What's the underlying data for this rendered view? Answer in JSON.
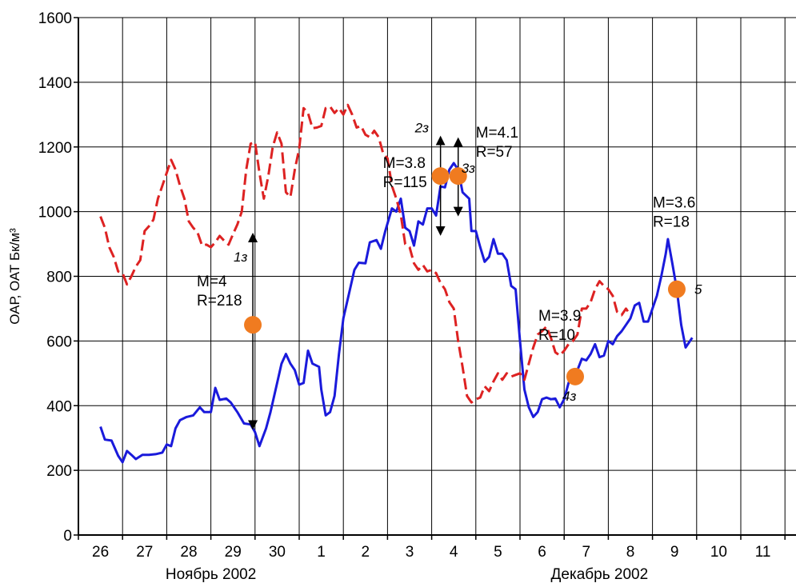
{
  "chart_data": {
    "type": "line",
    "ylabel": "ОАР, ОАТ Бк/м³",
    "ylim": [
      0,
      1600
    ],
    "yticks": [
      "0",
      "200",
      "400",
      "600",
      "800",
      "1000",
      "1200",
      "1400",
      "1600"
    ],
    "xlim": [
      0,
      16
    ],
    "x_ticks": [
      "26",
      "27",
      "28",
      "29",
      "30",
      "1",
      "2",
      "3",
      "4",
      "5",
      "6",
      "7",
      "8",
      "9",
      "10",
      "11"
    ],
    "x_month_labels": [
      "Ноябрь 2002",
      "Декабрь 2002"
    ],
    "grid": true,
    "series": [
      {
        "color": "#1a1adb",
        "style": "solid",
        "points": [
          [
            0.5,
            335
          ],
          [
            0.6,
            295
          ],
          [
            0.75,
            292
          ],
          [
            0.9,
            245
          ],
          [
            1.0,
            225
          ],
          [
            1.1,
            260
          ],
          [
            1.2,
            248
          ],
          [
            1.3,
            235
          ],
          [
            1.45,
            248
          ],
          [
            1.6,
            248
          ],
          [
            1.75,
            250
          ],
          [
            1.9,
            255
          ],
          [
            2.0,
            280
          ],
          [
            2.1,
            275
          ],
          [
            2.2,
            330
          ],
          [
            2.3,
            355
          ],
          [
            2.45,
            365
          ],
          [
            2.6,
            370
          ],
          [
            2.75,
            395
          ],
          [
            2.85,
            380
          ],
          [
            3.0,
            380
          ],
          [
            3.1,
            455
          ],
          [
            3.2,
            418
          ],
          [
            3.35,
            422
          ],
          [
            3.45,
            410
          ],
          [
            3.6,
            380
          ],
          [
            3.75,
            345
          ],
          [
            3.9,
            342
          ],
          [
            4.0,
            318
          ],
          [
            4.1,
            275
          ],
          [
            4.25,
            330
          ],
          [
            4.35,
            380
          ],
          [
            4.5,
            470
          ],
          [
            4.6,
            530
          ],
          [
            4.7,
            560
          ],
          [
            4.8,
            530
          ],
          [
            4.9,
            510
          ],
          [
            5.0,
            465
          ],
          [
            5.1,
            470
          ],
          [
            5.2,
            570
          ],
          [
            5.3,
            530
          ],
          [
            5.45,
            520
          ],
          [
            5.5,
            450
          ],
          [
            5.6,
            370
          ],
          [
            5.7,
            380
          ],
          [
            5.8,
            430
          ],
          [
            5.9,
            560
          ],
          [
            6.0,
            670
          ],
          [
            6.15,
            760
          ],
          [
            6.25,
            820
          ],
          [
            6.35,
            842
          ],
          [
            6.5,
            840
          ],
          [
            6.6,
            905
          ],
          [
            6.75,
            912
          ],
          [
            6.85,
            885
          ],
          [
            6.95,
            940
          ],
          [
            7.1,
            1010
          ],
          [
            7.2,
            1000
          ],
          [
            7.3,
            1040
          ],
          [
            7.4,
            950
          ],
          [
            7.5,
            940
          ],
          [
            7.6,
            895
          ],
          [
            7.7,
            970
          ],
          [
            7.8,
            960
          ],
          [
            7.9,
            1010
          ],
          [
            8.0,
            1010
          ],
          [
            8.1,
            988
          ],
          [
            8.2,
            1078
          ],
          [
            8.3,
            1075
          ],
          [
            8.4,
            1130
          ],
          [
            8.5,
            1150
          ],
          [
            8.6,
            1130
          ],
          [
            8.7,
            1060
          ],
          [
            8.85,
            1040
          ],
          [
            8.9,
            940
          ],
          [
            9.0,
            940
          ],
          [
            9.1,
            890
          ],
          [
            9.2,
            845
          ],
          [
            9.3,
            860
          ],
          [
            9.4,
            915
          ],
          [
            9.5,
            870
          ],
          [
            9.6,
            870
          ],
          [
            9.7,
            850
          ],
          [
            9.8,
            770
          ],
          [
            9.9,
            760
          ],
          [
            10.0,
            600
          ],
          [
            10.1,
            450
          ],
          [
            10.2,
            395
          ],
          [
            10.3,
            365
          ],
          [
            10.4,
            380
          ],
          [
            10.5,
            420
          ],
          [
            10.6,
            425
          ],
          [
            10.7,
            420
          ],
          [
            10.8,
            422
          ],
          [
            10.9,
            395
          ],
          [
            11.0,
            420
          ],
          [
            11.1,
            470
          ],
          [
            11.2,
            500
          ],
          [
            11.3,
            510
          ],
          [
            11.4,
            545
          ],
          [
            11.5,
            540
          ],
          [
            11.6,
            560
          ],
          [
            11.7,
            590
          ],
          [
            11.8,
            550
          ],
          [
            11.9,
            555
          ],
          [
            12.0,
            600
          ],
          [
            12.1,
            590
          ],
          [
            12.2,
            615
          ],
          [
            12.3,
            630
          ],
          [
            12.4,
            650
          ],
          [
            12.5,
            670
          ],
          [
            12.6,
            710
          ],
          [
            12.7,
            718
          ],
          [
            12.8,
            660
          ],
          [
            12.9,
            660
          ],
          [
            13.0,
            700
          ],
          [
            13.1,
            740
          ],
          [
            13.2,
            800
          ],
          [
            13.3,
            870
          ],
          [
            13.35,
            915
          ],
          [
            13.45,
            840
          ],
          [
            13.55,
            760
          ],
          [
            13.65,
            650
          ],
          [
            13.75,
            580
          ],
          [
            13.9,
            610
          ]
        ]
      },
      {
        "color": "#dd2222",
        "style": "dashed",
        "points": [
          [
            0.5,
            985
          ],
          [
            0.6,
            950
          ],
          [
            0.7,
            890
          ],
          [
            0.8,
            860
          ],
          [
            0.9,
            815
          ],
          [
            1.0,
            810
          ],
          [
            1.1,
            775
          ],
          [
            1.2,
            800
          ],
          [
            1.3,
            830
          ],
          [
            1.4,
            850
          ],
          [
            1.5,
            940
          ],
          [
            1.6,
            955
          ],
          [
            1.7,
            975
          ],
          [
            1.8,
            1040
          ],
          [
            1.9,
            1080
          ],
          [
            2.0,
            1120
          ],
          [
            2.1,
            1160
          ],
          [
            2.2,
            1130
          ],
          [
            2.3,
            1080
          ],
          [
            2.4,
            1040
          ],
          [
            2.5,
            970
          ],
          [
            2.6,
            950
          ],
          [
            2.7,
            935
          ],
          [
            2.8,
            895
          ],
          [
            2.9,
            898
          ],
          [
            3.0,
            890
          ],
          [
            3.1,
            905
          ],
          [
            3.2,
            925
          ],
          [
            3.3,
            910
          ],
          [
            3.4,
            898
          ],
          [
            3.5,
            930
          ],
          [
            3.6,
            960
          ],
          [
            3.7,
            1000
          ],
          [
            3.8,
            1130
          ],
          [
            3.9,
            1210
          ],
          [
            4.0,
            1215
          ],
          [
            4.1,
            1120
          ],
          [
            4.2,
            1040
          ],
          [
            4.3,
            1110
          ],
          [
            4.4,
            1200
          ],
          [
            4.5,
            1245
          ],
          [
            4.6,
            1210
          ],
          [
            4.7,
            1060
          ],
          [
            4.8,
            1045
          ],
          [
            4.9,
            1130
          ],
          [
            5.0,
            1195
          ],
          [
            5.1,
            1320
          ],
          [
            5.2,
            1305
          ],
          [
            5.3,
            1258
          ],
          [
            5.4,
            1260
          ],
          [
            5.5,
            1265
          ],
          [
            5.6,
            1320
          ],
          [
            5.7,
            1325
          ],
          [
            5.8,
            1305
          ],
          [
            5.9,
            1320
          ],
          [
            6.0,
            1300
          ],
          [
            6.1,
            1330
          ],
          [
            6.2,
            1300
          ],
          [
            6.3,
            1260
          ],
          [
            6.4,
            1265
          ],
          [
            6.5,
            1238
          ],
          [
            6.6,
            1230
          ],
          [
            6.7,
            1250
          ],
          [
            6.8,
            1230
          ],
          [
            6.9,
            1180
          ],
          [
            7.0,
            1165
          ],
          [
            7.1,
            1080
          ],
          [
            7.2,
            1040
          ],
          [
            7.3,
            990
          ],
          [
            7.4,
            900
          ],
          [
            7.5,
            890
          ],
          [
            7.6,
            840
          ],
          [
            7.7,
            820
          ],
          [
            7.8,
            835
          ],
          [
            7.9,
            815
          ],
          [
            8.0,
            820
          ],
          [
            8.1,
            810
          ],
          [
            8.2,
            780
          ],
          [
            8.3,
            760
          ],
          [
            8.4,
            720
          ],
          [
            8.5,
            700
          ],
          [
            8.6,
            600
          ],
          [
            8.7,
            520
          ],
          [
            8.8,
            430
          ],
          [
            8.9,
            410
          ],
          [
            9.0,
            420
          ],
          [
            9.1,
            425
          ],
          [
            9.2,
            460
          ],
          [
            9.3,
            445
          ],
          [
            9.4,
            475
          ],
          [
            9.5,
            500
          ],
          [
            9.6,
            480
          ],
          [
            9.7,
            500
          ],
          [
            9.8,
            490
          ],
          [
            9.9,
            495
          ],
          [
            10.0,
            500
          ],
          [
            10.1,
            480
          ],
          [
            10.2,
            530
          ],
          [
            10.3,
            580
          ],
          [
            10.4,
            620
          ],
          [
            10.5,
            630
          ],
          [
            10.6,
            645
          ],
          [
            10.7,
            610
          ],
          [
            10.8,
            565
          ],
          [
            10.9,
            555
          ],
          [
            11.0,
            570
          ],
          [
            11.1,
            590
          ],
          [
            11.2,
            600
          ],
          [
            11.3,
            620
          ],
          [
            11.4,
            700
          ],
          [
            11.5,
            700
          ],
          [
            11.6,
            720
          ],
          [
            11.7,
            760
          ],
          [
            11.8,
            785
          ],
          [
            11.9,
            770
          ],
          [
            12.0,
            760
          ],
          [
            12.1,
            740
          ],
          [
            12.2,
            690
          ],
          [
            12.3,
            680
          ],
          [
            12.4,
            700
          ],
          [
            12.45,
            690
          ]
        ]
      }
    ],
    "annotations": [
      {
        "marker_x": 3.95,
        "marker_y": 650,
        "label_m": "M=4",
        "label_r": "R=218",
        "event": "1з"
      },
      {
        "marker_x": 8.2,
        "marker_y": 1110,
        "label_m": "M=3.8",
        "label_r": "R=115",
        "event": "2з"
      },
      {
        "marker_x": 8.6,
        "marker_y": 1110,
        "label_m": "M=4.1",
        "label_r": "R=57",
        "event": "3з"
      },
      {
        "marker_x": 11.25,
        "marker_y": 490,
        "label_m": "M=3.9",
        "label_r": "R=10",
        "event": "4з"
      },
      {
        "marker_x": 13.55,
        "marker_y": 760,
        "label_m": "M=3.6",
        "label_r": "R=18",
        "event": "5"
      }
    ],
    "marker_color": "#f07b20"
  }
}
